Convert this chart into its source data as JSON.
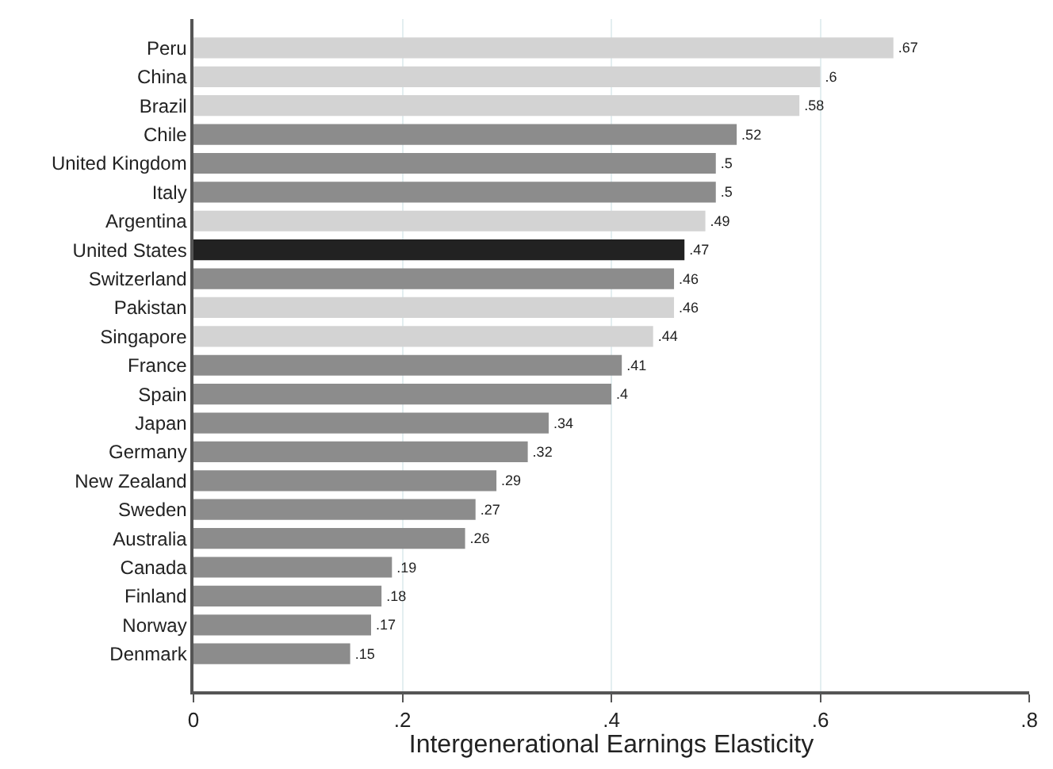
{
  "chart_data": {
    "type": "bar",
    "orientation": "horizontal",
    "xlabel": "Intergenerational Earnings Elasticity",
    "categories": [
      "Peru",
      "China",
      "Brazil",
      "Chile",
      "United Kingdom",
      "Italy",
      "Argentina",
      "United States",
      "Switzerland",
      "Pakistan",
      "Singapore",
      "France",
      "Spain",
      "Japan",
      "Germany",
      "New Zealand",
      "Sweden",
      "Australia",
      "Canada",
      "Finland",
      "Norway",
      "Denmark"
    ],
    "values": [
      0.67,
      0.6,
      0.58,
      0.52,
      0.5,
      0.5,
      0.49,
      0.47,
      0.46,
      0.46,
      0.44,
      0.41,
      0.4,
      0.34,
      0.32,
      0.29,
      0.27,
      0.26,
      0.19,
      0.18,
      0.17,
      0.15
    ],
    "value_labels": [
      ".67",
      ".6",
      ".58",
      ".52",
      ".5",
      ".5",
      ".49",
      ".47",
      ".46",
      ".46",
      ".44",
      ".41",
      ".4",
      ".34",
      ".32",
      ".29",
      ".27",
      ".26",
      ".19",
      ".18",
      ".17",
      ".15"
    ],
    "colors": [
      "#d3d3d3",
      "#d3d3d3",
      "#d3d3d3",
      "#8c8c8c",
      "#8c8c8c",
      "#8c8c8c",
      "#d3d3d3",
      "#222222",
      "#8c8c8c",
      "#d3d3d3",
      "#d3d3d3",
      "#8c8c8c",
      "#8c8c8c",
      "#8c8c8c",
      "#8c8c8c",
      "#8c8c8c",
      "#8c8c8c",
      "#8c8c8c",
      "#8c8c8c",
      "#8c8c8c",
      "#8c8c8c",
      "#8c8c8c"
    ],
    "xlim": [
      0,
      0.8
    ],
    "xticks": [
      0,
      {
        "value": 0.2,
        "label": ".2"
      },
      {
        "value": 0.4,
        "label": ".4"
      },
      {
        "value": 0.6,
        "label": ".6"
      },
      {
        "value": 0.8,
        "label": ".8"
      }
    ],
    "grid": "x"
  }
}
